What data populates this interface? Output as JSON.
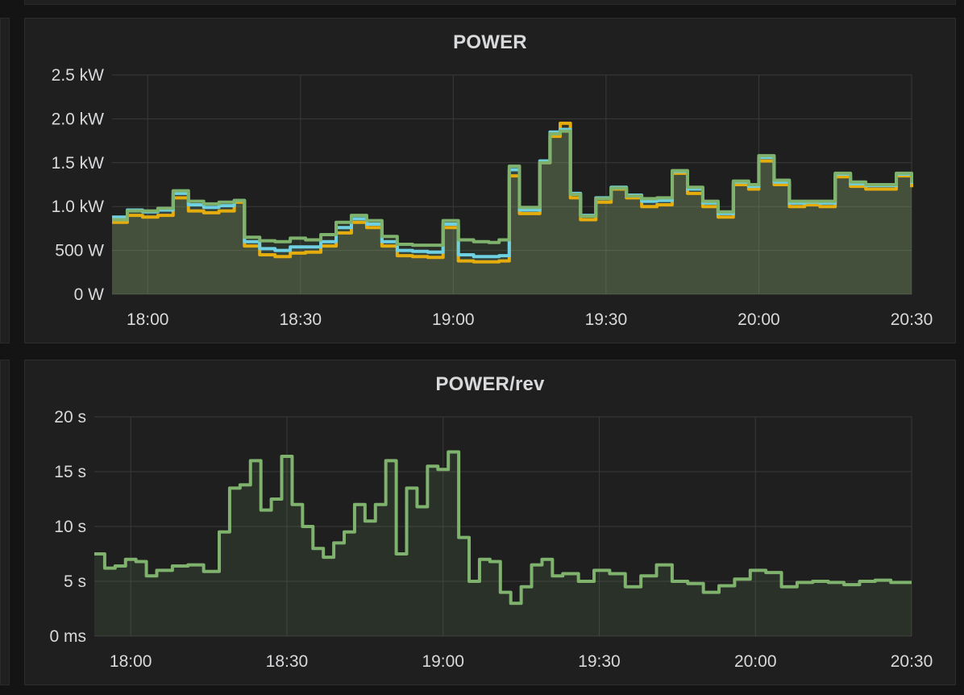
{
  "panels": [
    {
      "title": "POWER",
      "chart_data": {
        "type": "line",
        "title": "POWER",
        "unit": "W",
        "xlabel": "",
        "ylabel": "",
        "x_tick_labels": [
          "18:00",
          "18:30",
          "19:00",
          "19:30",
          "20:00",
          "20:30"
        ],
        "y_tick_labels": [
          "0 W",
          "500 W",
          "1.0 kW",
          "1.5 kW",
          "2.0 kW",
          "2.5 kW"
        ],
        "y_ticks": [
          0,
          500,
          1000,
          1500,
          2000,
          2500
        ],
        "xlim": [
          "17:53",
          "20:30"
        ],
        "ylim": [
          0,
          2500
        ],
        "grid": true,
        "legend": "none",
        "fill": true,
        "x": [
          "17:53",
          "17:56",
          "17:59",
          "18:02",
          "18:05",
          "18:08",
          "18:11",
          "18:14",
          "18:17",
          "18:19",
          "18:22",
          "18:25",
          "18:28",
          "18:31",
          "18:34",
          "18:37",
          "18:40",
          "18:43",
          "18:46",
          "18:49",
          "18:52",
          "18:55",
          "18:58",
          "19:01",
          "19:04",
          "19:07",
          "19:09",
          "19:11",
          "19:13",
          "19:15",
          "19:17",
          "19:19",
          "19:21",
          "19:23",
          "19:25",
          "19:28",
          "19:31",
          "19:34",
          "19:37",
          "19:40",
          "19:43",
          "19:46",
          "19:49",
          "19:52",
          "19:55",
          "19:58",
          "20:00",
          "20:03",
          "20:06",
          "20:09",
          "20:12",
          "20:15",
          "20:18",
          "20:21",
          "20:24",
          "20:27",
          "20:30"
        ],
        "series": [
          {
            "color": "#e5ac0e",
            "values": [
              820,
              900,
              880,
              900,
              1100,
              950,
              930,
              950,
              1050,
              550,
              450,
              430,
              470,
              480,
              550,
              700,
              820,
              760,
              550,
              440,
              430,
              420,
              760,
              380,
              370,
              370,
              380,
              1350,
              920,
              920,
              1500,
              1800,
              1950,
              1100,
              850,
              1050,
              1200,
              1100,
              1000,
              1020,
              1380,
              1150,
              1000,
              880,
              1250,
              1200,
              1520,
              1250,
              1000,
              1020,
              1000,
              1340,
              1230,
              1200,
              1200,
              1350,
              1220
            ],
            "end_color": "#e5ac0e"
          },
          {
            "color": "#6ed0e0",
            "values": [
              880,
              960,
              940,
              960,
              1150,
              1020,
              990,
              1010,
              1070,
              600,
              520,
              500,
              540,
              540,
              600,
              760,
              860,
              800,
              600,
              500,
              490,
              480,
              800,
              450,
              430,
              430,
              440,
              1420,
              960,
              960,
              1520,
              1850,
              1880,
              1150,
              900,
              1100,
              1220,
              1130,
              1060,
              1070,
              1400,
              1200,
              1040,
              920,
              1280,
              1230,
              1560,
              1280,
              1040,
              1050,
              1040,
              1370,
              1260,
              1240,
              1240,
              1370,
              1260
            ]
          },
          {
            "color": "#7eb26d",
            "values": [
              850,
              950,
              950,
              980,
              1180,
              1060,
              1030,
              1050,
              1070,
              650,
              610,
              600,
              640,
              620,
              680,
              820,
              900,
              840,
              660,
              570,
              560,
              560,
              840,
              620,
              600,
              590,
              620,
              1460,
              990,
              990,
              1500,
              1830,
              1860,
              1140,
              890,
              1090,
              1210,
              1120,
              1090,
              1100,
              1410,
              1220,
              1060,
              940,
              1290,
              1250,
              1580,
              1300,
              1060,
              1060,
              1060,
              1380,
              1280,
              1250,
              1250,
              1380,
              1270
            ]
          }
        ]
      }
    },
    {
      "title": "POWER/rev",
      "chart_data": {
        "type": "line",
        "title": "POWER/rev",
        "unit": "s",
        "xlabel": "",
        "ylabel": "",
        "x_tick_labels": [
          "18:00",
          "18:30",
          "19:00",
          "19:30",
          "20:00",
          "20:30"
        ],
        "y_tick_labels": [
          "0 ms",
          "5 s",
          "10 s",
          "15 s",
          "20 s"
        ],
        "y_ticks": [
          0,
          5,
          10,
          15,
          20
        ],
        "xlim": [
          "17:53",
          "20:30"
        ],
        "ylim": [
          0,
          20
        ],
        "grid": true,
        "legend": "none",
        "fill": true,
        "x": [
          "17:53",
          "17:55",
          "17:57",
          "17:59",
          "18:01",
          "18:03",
          "18:05",
          "18:08",
          "18:11",
          "18:14",
          "18:17",
          "18:19",
          "18:21",
          "18:23",
          "18:25",
          "18:27",
          "18:29",
          "18:31",
          "18:33",
          "18:35",
          "18:37",
          "18:39",
          "18:41",
          "18:43",
          "18:45",
          "18:47",
          "18:49",
          "18:51",
          "18:53",
          "18:55",
          "18:57",
          "18:59",
          "19:01",
          "19:03",
          "19:05",
          "19:07",
          "19:09",
          "19:11",
          "19:13",
          "19:15",
          "19:17",
          "19:19",
          "19:21",
          "19:23",
          "19:26",
          "19:29",
          "19:32",
          "19:35",
          "19:38",
          "19:41",
          "19:44",
          "19:47",
          "19:50",
          "19:53",
          "19:56",
          "19:59",
          "20:02",
          "20:05",
          "20:08",
          "20:11",
          "20:14",
          "20:17",
          "20:20",
          "20:23",
          "20:26",
          "20:30"
        ],
        "series": [
          {
            "color": "#7eb26d",
            "values": [
              7.5,
              6.2,
              6.4,
              7.0,
              6.8,
              5.5,
              6.0,
              6.4,
              6.5,
              5.9,
              9.5,
              13.5,
              13.8,
              16.0,
              11.5,
              12.5,
              16.4,
              12.0,
              10.0,
              8.0,
              7.2,
              8.5,
              9.5,
              12.0,
              10.5,
              12.0,
              16.0,
              7.5,
              13.5,
              11.8,
              15.5,
              15.2,
              16.8,
              9.0,
              5.0,
              7.0,
              6.8,
              4.0,
              3.0,
              4.5,
              6.5,
              7.0,
              5.5,
              5.7,
              5.0,
              6.0,
              5.7,
              4.5,
              5.5,
              6.5,
              5.0,
              4.8,
              4.0,
              4.6,
              5.2,
              6.0,
              5.8,
              4.5,
              4.9,
              5.0,
              4.9,
              4.7,
              5.0,
              5.1,
              4.9,
              4.9
            ]
          }
        ]
      }
    }
  ]
}
